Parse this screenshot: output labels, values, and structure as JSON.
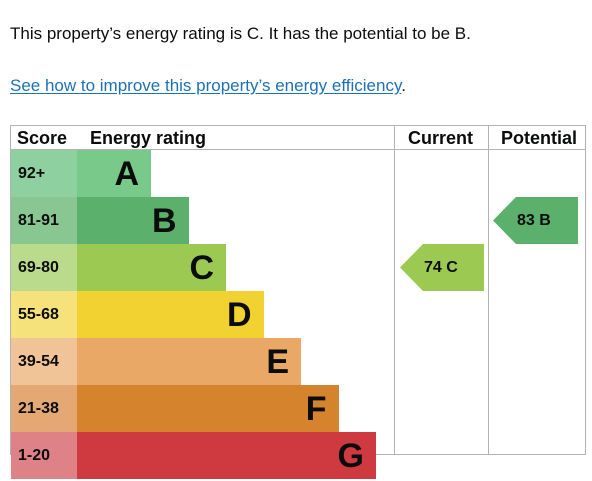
{
  "summary": "This property’s energy rating is C. It has the potential to be B.",
  "improve_link": "See how to improve this property’s energy efficiency",
  "improve_link_suffix": ".",
  "table": {
    "headers": {
      "score": "Score",
      "energy_rating": "Energy rating",
      "current": "Current",
      "potential": "Potential"
    },
    "bands": [
      {
        "score": "92+",
        "letter": "A",
        "band_color": "#78c98a",
        "score_bg": "#8fd0a0"
      },
      {
        "score": "81-91",
        "letter": "B",
        "band_color": "#5bb06b",
        "score_bg": "#88c792"
      },
      {
        "score": "69-80",
        "letter": "C",
        "band_color": "#9cc952",
        "score_bg": "#bbdb8c"
      },
      {
        "score": "55-68",
        "letter": "D",
        "band_color": "#f2d230",
        "score_bg": "#f6e27a"
      },
      {
        "score": "39-54",
        "letter": "E",
        "band_color": "#e9a866",
        "score_bg": "#f0c497"
      },
      {
        "score": "21-38",
        "letter": "F",
        "band_color": "#d6832e",
        "score_bg": "#e3a873"
      },
      {
        "score": "1-20",
        "letter": "G",
        "band_color": "#cf3a40",
        "score_bg": "#df8287"
      }
    ],
    "current": {
      "label": "74 C",
      "band_index": 2,
      "color": "#9cc952"
    },
    "potential": {
      "label": "83 B",
      "band_index": 1,
      "color": "#5bb06b"
    }
  }
}
